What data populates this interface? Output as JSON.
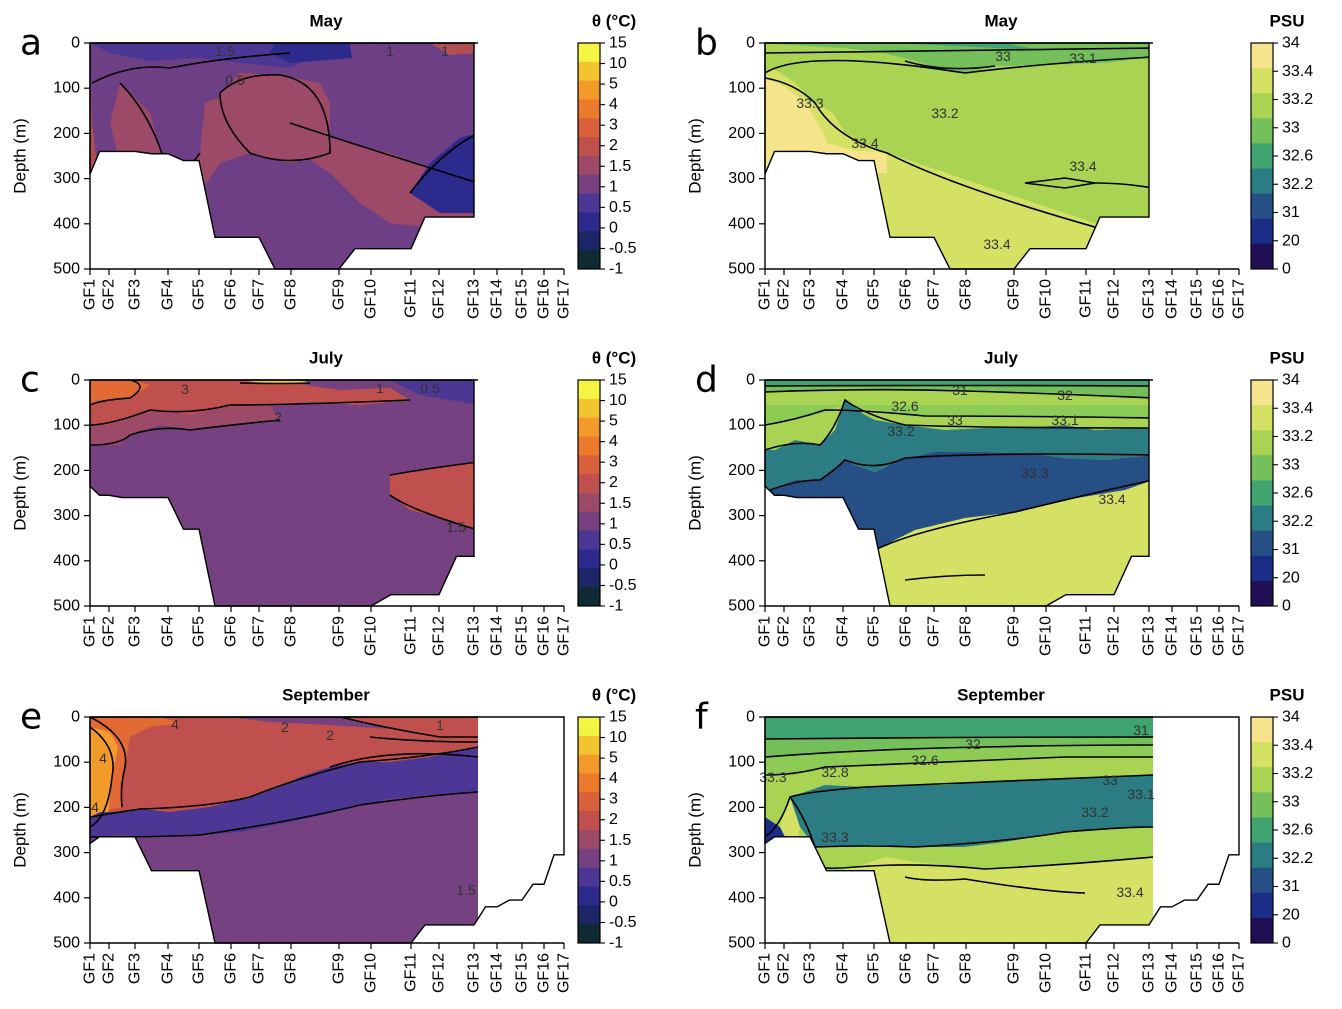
{
  "figure": {
    "stations": [
      "GF1",
      "GF2",
      "GF3",
      "GF4",
      "GF5",
      "GF6",
      "GF7",
      "GF8",
      "GF9",
      "GF10",
      "GF11",
      "GF12",
      "GF13",
      "GF14",
      "GF15",
      "GF16",
      "GF17"
    ],
    "y_ticks": [
      "0",
      "100",
      "200",
      "300",
      "400",
      "500"
    ],
    "y_label": "Depth (m)"
  },
  "colorbars": {
    "theta": {
      "title": "θ (°C)",
      "labels": [
        "15",
        "10",
        "5",
        "4",
        "3",
        "2",
        "1.5",
        "1",
        "0.5",
        "0",
        "-0.5",
        "-1"
      ],
      "colors": [
        "#f4f442",
        "#f2c530",
        "#f29a2a",
        "#ec7a2c",
        "#d8613c",
        "#c0504e",
        "#9c4a68",
        "#754180",
        "#4c3794",
        "#2c2a8c",
        "#1c2566",
        "#0f2a33"
      ]
    },
    "psu": {
      "title": "PSU",
      "labels": [
        "34",
        "33.4",
        "33.2",
        "33",
        "32.6",
        "32.2",
        "31",
        "20",
        "0"
      ],
      "colors": [
        "#f6e48c",
        "#d5e164",
        "#a8d353",
        "#74bf59",
        "#3fa470",
        "#2b7c83",
        "#264f86",
        "#1a2e88",
        "#200f55"
      ]
    }
  },
  "chart_data": [
    {
      "panel": "a",
      "title": "May",
      "variable": "θ (°C)",
      "type": "heatmap",
      "fill_color": "#6e3f84",
      "zones": [
        {
          "level": "2",
          "color": "#b05052"
        },
        {
          "level": "1.5",
          "color": "#9c4a68"
        },
        {
          "level": "0.5",
          "color": "#2c2a8c"
        },
        {
          "level": "1",
          "color": "#4c3794"
        }
      ],
      "contour_labels": [
        "1.5",
        "1",
        "1",
        "0.5"
      ],
      "stations_sampled": [
        "GF1",
        "GF2",
        "GF3",
        "GF4",
        "GF5",
        "GF6",
        "GF7",
        "GF8",
        "GF9",
        "GF10",
        "GF11",
        "GF12",
        "GF13"
      ],
      "bottom_depth_m": [
        290,
        240,
        240,
        245,
        260,
        430,
        430,
        500,
        500,
        455,
        455,
        385,
        385
      ]
    },
    {
      "panel": "b",
      "title": "May",
      "variable": "PSU",
      "type": "heatmap",
      "fill_color": "#a8d353",
      "zones": [
        {
          "level": "33.4",
          "color": "#d5e164"
        },
        {
          "level": "34",
          "color": "#f6e48c"
        },
        {
          "level": "33",
          "color": "#74bf59"
        },
        {
          "level": "32.6",
          "color": "#3fa470"
        }
      ],
      "contour_labels": [
        "33",
        "33.1",
        "33.3",
        "33.2",
        "33.4",
        "33.4",
        "33.4"
      ],
      "stations_sampled": [
        "GF1",
        "GF2",
        "GF3",
        "GF4",
        "GF5",
        "GF6",
        "GF7",
        "GF8",
        "GF9",
        "GF10",
        "GF11",
        "GF12",
        "GF13"
      ],
      "bottom_depth_m": [
        290,
        240,
        240,
        245,
        260,
        430,
        430,
        500,
        500,
        455,
        455,
        385,
        385
      ]
    },
    {
      "panel": "c",
      "title": "July",
      "variable": "θ (°C)",
      "type": "heatmap",
      "fill_color": "#754180",
      "zones": [
        {
          "level": "2",
          "color": "#c0504e"
        },
        {
          "level": "1.5",
          "color": "#9c4a68"
        },
        {
          "level": "3",
          "color": "#e26a34"
        },
        {
          "level": "1",
          "color": "#4c3794"
        },
        {
          "level": "10",
          "color": "#f2c530"
        }
      ],
      "contour_labels": [
        "3",
        "2",
        "1.5",
        "1",
        "0.5",
        "1.5"
      ],
      "stations_sampled": [
        "GF1",
        "GF2",
        "GF3",
        "GF4",
        "GF5",
        "GF6",
        "GF7",
        "GF8",
        "GF9",
        "GF10",
        "GF11",
        "GF12",
        "GF13"
      ],
      "bottom_depth_m": [
        235,
        255,
        260,
        260,
        330,
        500,
        500,
        500,
        500,
        500,
        475,
        475,
        390
      ]
    },
    {
      "panel": "d",
      "title": "July",
      "variable": "PSU",
      "type": "heatmap",
      "fill_color": "#d5e164",
      "zones": [
        {
          "level": "33.3",
          "color": "#a8d353"
        },
        {
          "level": "33.2",
          "color": "#8ccb55"
        },
        {
          "level": "33.1",
          "color": "#74bf59"
        },
        {
          "level": "32.6",
          "color": "#3fa470"
        },
        {
          "level": "32.2",
          "color": "#2b7c83"
        },
        {
          "level": "31",
          "color": "#264f86"
        }
      ],
      "contour_labels": [
        "31",
        "32",
        "32.6",
        "33",
        "33.1",
        "33.2",
        "33.3",
        "33.4"
      ],
      "stations_sampled": [
        "GF1",
        "GF2",
        "GF3",
        "GF4",
        "GF5",
        "GF6",
        "GF7",
        "GF8",
        "GF9",
        "GF10",
        "GF11",
        "GF12",
        "GF13"
      ],
      "bottom_depth_m": [
        235,
        255,
        260,
        260,
        330,
        500,
        500,
        500,
        500,
        500,
        475,
        475,
        390
      ]
    },
    {
      "panel": "e",
      "title": "September",
      "variable": "θ (°C)",
      "type": "heatmap",
      "fill_color": "#754180",
      "zones": [
        {
          "level": "2",
          "color": "#c0504e"
        },
        {
          "level": "3",
          "color": "#e26a34"
        },
        {
          "level": "4",
          "color": "#f29a2a"
        },
        {
          "level": "1",
          "color": "#4c3794"
        }
      ],
      "contour_labels": [
        "4",
        "4",
        "4",
        "2",
        "2",
        "1",
        "1.5"
      ],
      "stations_sampled": [
        "GF1",
        "GF2",
        "GF3",
        "GF4",
        "GF5",
        "GF6",
        "GF7",
        "GF8",
        "GF9",
        "GF10",
        "GF11",
        "GF12",
        "GF13",
        "GF14",
        "GF15",
        "GF16",
        "GF17"
      ],
      "bottom_depth_m": [
        280,
        265,
        265,
        340,
        340,
        500,
        500,
        500,
        500,
        500,
        500,
        460,
        460,
        420,
        405,
        370,
        305
      ]
    },
    {
      "panel": "f",
      "title": "September",
      "variable": "PSU",
      "type": "heatmap",
      "fill_color": "#d5e164",
      "zones": [
        {
          "level": "33.3",
          "color": "#a8d353"
        },
        {
          "level": "33.2",
          "color": "#8ccb55"
        },
        {
          "level": "33.1",
          "color": "#74bf59"
        },
        {
          "level": "32.6",
          "color": "#3fa470"
        },
        {
          "level": "32",
          "color": "#2b7c83"
        },
        {
          "level": "31",
          "color": "#1a2e88"
        }
      ],
      "contour_labels": [
        "31",
        "32",
        "32.8",
        "32.6",
        "33",
        "33.1",
        "33.2",
        "33.3",
        "33.3",
        "33.4"
      ],
      "stations_sampled": [
        "GF1",
        "GF2",
        "GF3",
        "GF4",
        "GF5",
        "GF6",
        "GF7",
        "GF8",
        "GF9",
        "GF10",
        "GF11",
        "GF12",
        "GF13",
        "GF14",
        "GF15",
        "GF16",
        "GF17"
      ],
      "bottom_depth_m": [
        280,
        265,
        265,
        340,
        340,
        500,
        500,
        500,
        500,
        500,
        500,
        460,
        460,
        420,
        405,
        370,
        305
      ]
    }
  ]
}
